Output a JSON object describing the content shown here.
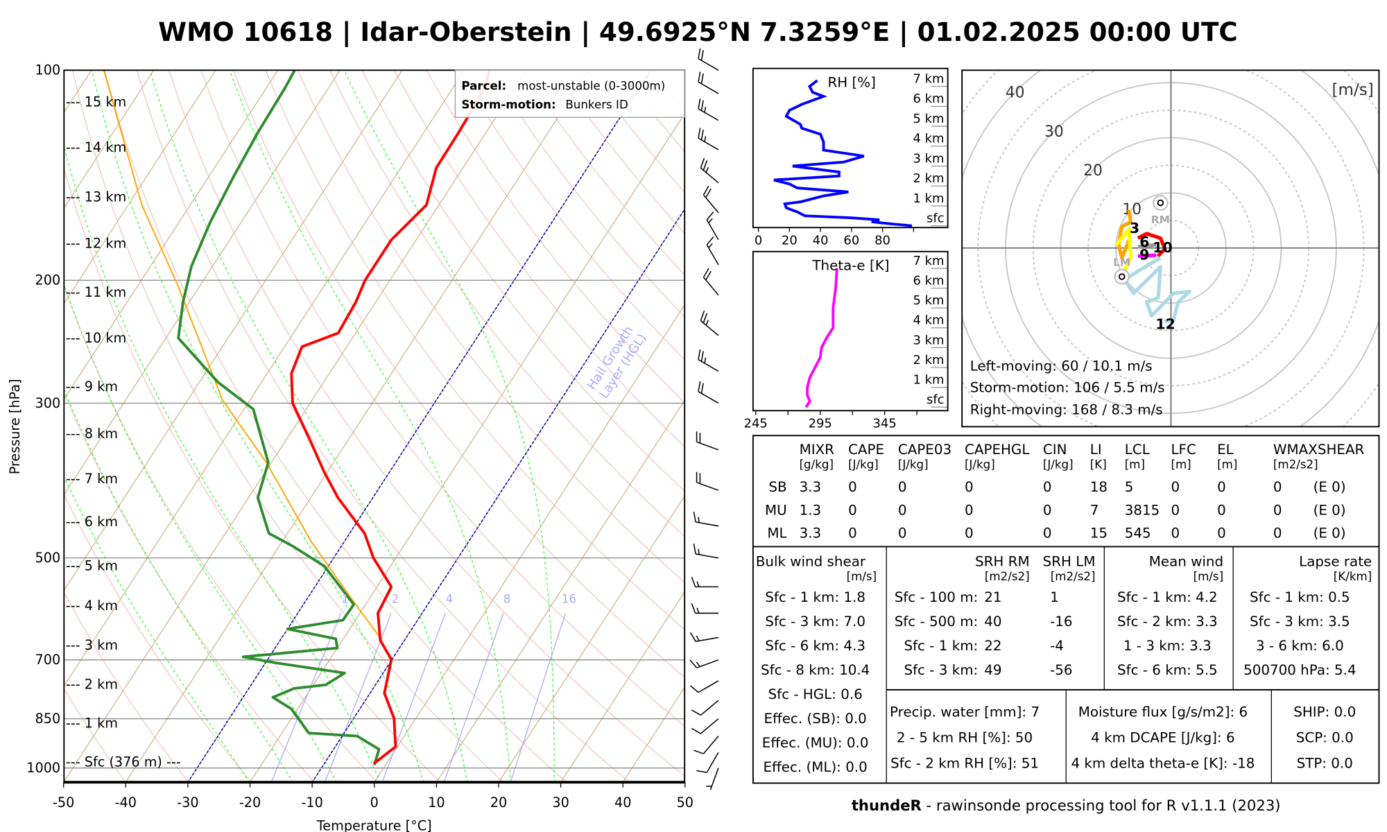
{
  "title": "WMO 10618 | Idar-Oberstein | 49.6925°N 7.3259°E | 01.02.2025 00:00 UTC",
  "footer": {
    "bold": "thundeR",
    "rest": " - rawinsonde processing tool for R v1.1.1 (2023)"
  },
  "legend": {
    "parcel_label": "Parcel:",
    "parcel_value": "most-unstable (0-3000m)",
    "storm_label": "Storm-motion:",
    "storm_value": "Bunkers ID"
  },
  "colors": {
    "temperature": "#ff0000",
    "dewpoint": "#2e8b2e",
    "parcel": "#ffa500",
    "rh": "#0000ff",
    "theta_e": "#ff00ff",
    "isotherm": "#d2b48c",
    "dry_adiabat": "#f0c8c0",
    "moist_adiabat": "#33ff33",
    "mixing_ratio": "#aaaaff",
    "hgl": "#0000cc"
  },
  "chart_data": [
    {
      "type": "line",
      "name": "skew-t",
      "xlabel": "Temperature [°C]",
      "ylabel": "Pressure [hPa]",
      "xlim": [
        -50,
        50
      ],
      "ylim": [
        1050,
        100
      ],
      "x_ticks": [
        "-50",
        "-40",
        "-30",
        "-20",
        "-10",
        "0",
        "10",
        "20",
        "30",
        "40",
        "50"
      ],
      "y_ticks": [
        "100",
        "200",
        "300",
        "500",
        "700",
        "850",
        "1000"
      ],
      "height_labels": [
        {
          "text": "--- 15 km",
          "p": 111
        },
        {
          "text": "--- 14 km",
          "p": 129
        },
        {
          "text": "--- 13 km",
          "p": 152
        },
        {
          "text": "--- 12 km",
          "p": 177
        },
        {
          "text": "--- 11 km",
          "p": 208
        },
        {
          "text": "--- 10 km",
          "p": 242
        },
        {
          "text": "--- 9 km",
          "p": 284
        },
        {
          "text": "--- 8 km",
          "p": 332
        },
        {
          "text": "--- 7 km",
          "p": 385
        },
        {
          "text": "--- 6 km",
          "p": 444
        },
        {
          "text": "--- 5 km",
          "p": 513
        },
        {
          "text": "--- 4 km",
          "p": 585
        },
        {
          "text": "--- 3 km",
          "p": 667
        },
        {
          "text": "--- 2 km",
          "p": 759
        },
        {
          "text": "--- 1 km",
          "p": 863
        },
        {
          "text": "--- Sfc (376 m) ---",
          "p": 980
        }
      ],
      "mixing_ratio_labels": [
        "1",
        "2",
        "4",
        "8",
        "16"
      ],
      "mixing_ratio_values": [
        1,
        2,
        4,
        8,
        16
      ],
      "hgl_label": [
        "Hail Growth",
        "Layer (HGL)"
      ],
      "hgl_isotherms": [
        -10,
        -30
      ],
      "series": [
        {
          "name": "temperature",
          "points": [
            [
              985,
              -2.0
            ],
            [
              932,
              -0.3
            ],
            [
              849,
              -3.5
            ],
            [
              781,
              -7.7
            ],
            [
              699,
              -10.1
            ],
            [
              656,
              -13.9
            ],
            [
              600,
              -17.1
            ],
            [
              550,
              -17.7
            ],
            [
              500,
              -23.6
            ],
            [
              461,
              -27.6
            ],
            [
              410,
              -35.6
            ],
            [
              376,
              -40.6
            ],
            [
              343,
              -45.5
            ],
            [
              300,
              -52.8
            ],
            [
              272,
              -56.1
            ],
            [
              249,
              -57.2
            ],
            [
              238,
              -52.8
            ],
            [
              215,
              -53.2
            ],
            [
              200,
              -54.0
            ],
            [
              175,
              -54.0
            ],
            [
              156,
              -52.0
            ],
            [
              138,
              -54.3
            ],
            [
              123,
              -54.4
            ],
            [
              106,
              -54.8
            ],
            [
              100,
              -56.0
            ]
          ]
        },
        {
          "name": "dewpoint",
          "points": [
            [
              990,
              -1.8
            ],
            [
              940,
              -2.7
            ],
            [
              900,
              -7.6
            ],
            [
              891,
              -15.7
            ],
            [
              823,
              -21.0
            ],
            [
              792,
              -25.2
            ],
            [
              769,
              -22.7
            ],
            [
              760,
              -18.0
            ],
            [
              731,
              -16.2
            ],
            [
              707,
              -28.3
            ],
            [
              693,
              -34.2
            ],
            [
              673,
              -20.0
            ],
            [
              653,
              -21.2
            ],
            [
              632,
              -30.0
            ],
            [
              614,
              -22.0
            ],
            [
              583,
              -21.9
            ],
            [
              514,
              -30.6
            ],
            [
              481,
              -37.8
            ],
            [
              461,
              -43.0
            ],
            [
              410,
              -48.5
            ],
            [
              365,
              -50.5
            ],
            [
              306,
              -58.5
            ],
            [
              280,
              -67.0
            ],
            [
              242,
              -78.0
            ],
            [
              215,
              -81.0
            ],
            [
              191,
              -83.4
            ],
            [
              165,
              -85.0
            ],
            [
              142,
              -86.0
            ],
            [
              123,
              -86.7
            ],
            [
              106,
              -87.0
            ],
            [
              100,
              -87.3
            ]
          ]
        },
        {
          "name": "parcel",
          "points": [
            [
              656,
              -13.6
            ],
            [
              583,
              -21.6
            ],
            [
              474,
              -35.3
            ],
            [
              365,
              -50.8
            ],
            [
              297,
              -64.4
            ],
            [
              203,
              -83.7
            ],
            [
              156,
              -97.8
            ],
            [
              100,
              -118.0
            ]
          ]
        }
      ],
      "wind_barbs": [
        {
          "p": 1000,
          "dir": 200,
          "kt": 5
        },
        {
          "p": 950,
          "dir": 210,
          "kt": 8
        },
        {
          "p": 900,
          "dir": 220,
          "kt": 10
        },
        {
          "p": 850,
          "dir": 230,
          "kt": 10
        },
        {
          "p": 800,
          "dir": 230,
          "kt": 12
        },
        {
          "p": 750,
          "dir": 240,
          "kt": 12
        },
        {
          "p": 700,
          "dir": 250,
          "kt": 15
        },
        {
          "p": 650,
          "dir": 260,
          "kt": 15
        },
        {
          "p": 600,
          "dir": 270,
          "kt": 15
        },
        {
          "p": 550,
          "dir": 270,
          "kt": 15
        },
        {
          "p": 500,
          "dir": 280,
          "kt": 15
        },
        {
          "p": 450,
          "dir": 280,
          "kt": 15
        },
        {
          "p": 400,
          "dir": 290,
          "kt": 20
        },
        {
          "p": 350,
          "dir": 290,
          "kt": 20
        },
        {
          "p": 300,
          "dir": 300,
          "kt": 20
        },
        {
          "p": 270,
          "dir": 300,
          "kt": 25
        },
        {
          "p": 240,
          "dir": 310,
          "kt": 25
        },
        {
          "p": 210,
          "dir": 320,
          "kt": 20
        },
        {
          "p": 190,
          "dir": 330,
          "kt": 15
        },
        {
          "p": 175,
          "dir": 330,
          "kt": 15
        },
        {
          "p": 160,
          "dir": 320,
          "kt": 20
        },
        {
          "p": 145,
          "dir": 310,
          "kt": 25
        },
        {
          "p": 130,
          "dir": 300,
          "kt": 25
        },
        {
          "p": 118,
          "dir": 300,
          "kt": 25
        },
        {
          "p": 108,
          "dir": 300,
          "kt": 20
        },
        {
          "p": 100,
          "dir": 300,
          "kt": 20
        }
      ]
    },
    {
      "type": "line",
      "name": "relative-humidity",
      "xlabel": "RH [%]",
      "xlim": [
        0,
        100
      ],
      "x_ticks": [
        "0",
        "20",
        "40",
        "60",
        "80"
      ],
      "height_labels": [
        "sfc",
        "1 km",
        "2 km",
        "3 km",
        "4 km",
        "5 km",
        "6 km",
        "7 km"
      ],
      "points": [
        [
          0,
          99
        ],
        [
          0.1,
          85
        ],
        [
          0.2,
          73
        ],
        [
          0.3,
          78
        ],
        [
          0.4,
          60
        ],
        [
          0.5,
          30
        ],
        [
          0.7,
          25
        ],
        [
          0.9,
          18
        ],
        [
          1.1,
          17
        ],
        [
          1.2,
          27
        ],
        [
          1.5,
          42
        ],
        [
          1.7,
          58
        ],
        [
          1.9,
          25
        ],
        [
          2.1,
          20
        ],
        [
          2.3,
          10
        ],
        [
          2.5,
          52
        ],
        [
          2.7,
          52
        ],
        [
          3.0,
          22
        ],
        [
          3.2,
          55
        ],
        [
          3.5,
          68
        ],
        [
          3.8,
          42
        ],
        [
          4.2,
          42
        ],
        [
          4.6,
          40
        ],
        [
          4.9,
          28
        ],
        [
          5.1,
          27
        ],
        [
          5.5,
          18
        ],
        [
          5.8,
          20
        ],
        [
          6.1,
          28
        ],
        [
          6.5,
          42
        ],
        [
          6.7,
          35
        ],
        [
          7.0,
          33
        ],
        [
          7.3,
          38
        ]
      ]
    },
    {
      "type": "line",
      "name": "theta-e",
      "xlabel": "Theta-e [K]",
      "xlim": [
        245,
        395
      ],
      "x_ticks": [
        "245",
        "295",
        "345"
      ],
      "height_labels": [
        "sfc",
        "1 km",
        "2 km",
        "3 km",
        "4 km",
        "5 km",
        "6 km",
        "7 km"
      ],
      "points": [
        [
          0,
          284
        ],
        [
          0.3,
          287
        ],
        [
          0.6,
          285
        ],
        [
          1,
          285
        ],
        [
          1.5,
          287
        ],
        [
          2,
          291
        ],
        [
          2.5,
          295
        ],
        [
          3,
          296
        ],
        [
          3.5,
          300
        ],
        [
          4,
          305
        ],
        [
          5,
          305
        ],
        [
          6,
          307
        ],
        [
          7,
          308
        ]
      ]
    },
    {
      "type": "scatter",
      "name": "hodograph",
      "unit_label": "[m/s]",
      "ring_labels": [
        "10",
        "20",
        "30",
        "40"
      ],
      "traces": [
        {
          "color": "#ffa500",
          "points": [
            [
              -7.6,
              6.9
            ],
            [
              -7.3,
              4.7
            ],
            [
              -8.9,
              3.9
            ],
            [
              -9.5,
              0.6
            ],
            [
              -8.9,
              -1.8
            ],
            [
              -7.6,
              1.5
            ]
          ]
        },
        {
          "color": "#ffff00",
          "points": [
            [
              -10,
              0.5
            ],
            [
              -8.9,
              1.8
            ],
            [
              -7.6,
              3.4
            ],
            [
              -7.3,
              -1.8
            ],
            [
              -8.9,
              -5.0
            ]
          ]
        },
        {
          "color": "#ff0000",
          "points": [
            [
              -6,
              1.8
            ],
            [
              -4.4,
              2.6
            ],
            [
              -1.9,
              1.8
            ],
            [
              -1.1,
              -0.2
            ],
            [
              -2.4,
              -1.5
            ]
          ]
        },
        {
          "color": "#ff00ff",
          "points": [
            [
              -6,
              -1.5
            ],
            [
              -2.7,
              -1.3
            ]
          ]
        },
        {
          "color": "#999999",
          "points": [
            [
              -6,
              0.2
            ],
            [
              -2.7,
              0.6
            ]
          ]
        },
        {
          "color": "#add8e6",
          "points": [
            [
              -1.9,
              -1.8
            ],
            [
              -6,
              -4.2
            ],
            [
              -8.4,
              -5.8
            ],
            [
              -6.8,
              -8.2
            ],
            [
              -3.5,
              -5
            ],
            [
              -1.9,
              -3.4
            ],
            [
              -2.3,
              -9
            ],
            [
              -4.4,
              -9.8
            ],
            [
              -3.5,
              -12.3
            ],
            [
              0.5,
              -8.2
            ],
            [
              3.4,
              -7.9
            ],
            [
              1.3,
              -9.8
            ],
            [
              0.5,
              -13
            ],
            [
              -1.1,
              -13.4
            ]
          ]
        }
      ],
      "markers": [
        {
          "label": "RM",
          "u": -1.9,
          "v": 8.2
        },
        {
          "label": "LM",
          "u": -8.9,
          "v": -5.2
        }
      ],
      "height_marks": [
        {
          "text": "3",
          "u": -6.6,
          "v": 2.7
        },
        {
          "text": "6",
          "u": -4.8,
          "v": 0.2
        },
        {
          "text": "9",
          "u": -4.8,
          "v": -1.8
        },
        {
          "text": "10",
          "u": -1.5,
          "v": -0.8
        },
        {
          "text": "12",
          "u": -1.0,
          "v": -14.7
        }
      ],
      "storm_text": [
        "Left-moving: 60 / 10.1 m/s",
        "Storm-motion: 106 / 5.5 m/s",
        "Right-moving: 168 / 8.3 m/s"
      ]
    }
  ],
  "params_table": {
    "headers": [
      [
        "MIXR",
        "[g/kg]"
      ],
      [
        "CAPE",
        "[J/kg]"
      ],
      [
        "CAPE03",
        "[J/kg]"
      ],
      [
        "CAPEHGL",
        "[J/kg]"
      ],
      [
        "CIN",
        "[J/kg]"
      ],
      [
        "LI",
        "[K]"
      ],
      [
        "LCL",
        "[m]"
      ],
      [
        "LFC",
        "[m]"
      ],
      [
        "EL",
        "[m]"
      ],
      [
        "WMAXSHEAR",
        "[m2/s2]"
      ]
    ],
    "rows": [
      {
        "label": "SB",
        "values": [
          "3.3",
          "0",
          "0",
          "0",
          "0",
          "18",
          "5",
          "0",
          "0",
          "0"
        ],
        "extra": "(E 0)"
      },
      {
        "label": "MU",
        "values": [
          "1.3",
          "0",
          "0",
          "0",
          "0",
          "7",
          "3815",
          "0",
          "0",
          "0"
        ],
        "extra": "(E 0)"
      },
      {
        "label": "ML",
        "values": [
          "3.3",
          "0",
          "0",
          "0",
          "0",
          "15",
          "545",
          "0",
          "0",
          "0"
        ],
        "extra": "(E 0)"
      }
    ]
  },
  "shear": {
    "title": "Bulk wind shear",
    "unit": "[m/s]",
    "rows": [
      "Sfc - 1 km: 1.8",
      "Sfc - 3 km: 7.0",
      "Sfc - 6 km: 4.3",
      "Sfc - 8 km: 10.4",
      "Sfc - HGL: 0.6",
      "Effec. (SB): 0.0",
      "Effec. (MU): 0.0",
      "Effec. (ML): 0.0"
    ]
  },
  "srh": {
    "title_rm": "SRH RM",
    "title_lm": "SRH LM",
    "unit_rm": "[m2/s2]",
    "unit_lm": "[m2/s2]",
    "rows": [
      {
        "label": "Sfc - 100 m:",
        "rm": "21",
        "lm": "1"
      },
      {
        "label": "Sfc - 500 m:",
        "rm": "40",
        "lm": "-16"
      },
      {
        "label": "Sfc - 1 km:",
        "rm": "22",
        "lm": "-4"
      },
      {
        "label": "Sfc - 3 km:",
        "rm": "49",
        "lm": "-56"
      }
    ]
  },
  "mean_wind": {
    "title": "Mean wind",
    "unit": "[m/s]",
    "rows": [
      "Sfc - 1 km: 4.2",
      "Sfc - 2 km: 3.3",
      "1 - 3 km: 3.3",
      "Sfc - 6 km: 5.5"
    ]
  },
  "lapse_rate": {
    "title": "Lapse rate",
    "unit": "[K/km]",
    "rows": [
      "Sfc - 1 km: 0.5",
      "Sfc - 3 km: 3.5",
      "3 - 6 km: 6.0",
      "500700 hPa: 5.4"
    ]
  },
  "moisture": {
    "rows": [
      "Precip. water [mm]: 7",
      "2 - 5 km RH [%]: 50",
      "Sfc - 2 km RH [%]: 51"
    ]
  },
  "flux": {
    "rows": [
      "Moisture flux [g/s/m2]: 6",
      "4 km DCAPE [J/kg]: 6",
      "4 km delta theta-e [K]: -18"
    ]
  },
  "indices": {
    "rows": [
      "SHIP: 0.0",
      "SCP: 0.0",
      "STP: 0.0"
    ]
  }
}
